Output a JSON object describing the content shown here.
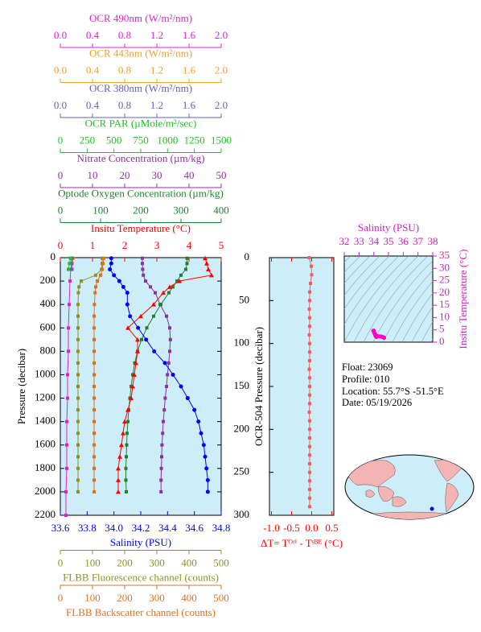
{
  "chart_data": [
    {
      "type": "profile",
      "ylabel": "Pressure (decibar)",
      "ylim": [
        0,
        2200
      ],
      "yticks": [
        0,
        200,
        400,
        600,
        800,
        1000,
        1200,
        1400,
        1600,
        1800,
        2000,
        2200
      ],
      "background": "#cdeef8",
      "pressure": [
        5,
        50,
        100,
        150,
        200,
        250,
        300,
        400,
        500,
        600,
        700,
        800,
        900,
        1000,
        1100,
        1200,
        1300,
        1400,
        1500,
        1600,
        1700,
        1800,
        1900,
        2000
      ],
      "series": [
        {
          "name": "OCR 490nm (W/m²/nm)",
          "color": "#e020d0",
          "position": "top",
          "marker": "square",
          "xlim": [
            0,
            2
          ],
          "xticks": [
            {
              "value": 0,
              "label": "0.0"
            },
            0.4,
            0.8,
            1.2,
            1.6,
            {
              "value": 2,
              "label": "2.0"
            }
          ],
          "pressure": [
            5,
            50,
            100,
            200,
            400,
            600,
            800,
            1000,
            1200,
            1400,
            1600,
            1800,
            2000,
            2200
          ],
          "values": [
            0.14,
            0.14,
            0.13,
            0.12,
            0.11,
            0.1,
            0.1,
            0.09,
            0.09,
            0.08,
            0.08,
            0.08,
            0.07,
            0.07
          ]
        },
        {
          "name": "OCR 443nm (W/m²/nm)",
          "color": "#f0a020",
          "position": "top",
          "marker": "square",
          "xlim": [
            0,
            2
          ],
          "xticks": [
            {
              "value": 0,
              "label": "0.0"
            },
            0.4,
            0.8,
            1.2,
            1.6,
            {
              "value": 2,
              "label": "2.0"
            }
          ],
          "pressure": [
            5,
            50,
            100
          ],
          "values": [
            0.16,
            0.15,
            0.15
          ]
        },
        {
          "name": "OCR 380nm (W/m²/nm)",
          "color": "#6060c0",
          "position": "top",
          "marker": "square",
          "xlim": [
            0,
            2
          ],
          "xticks": [
            {
              "value": 0,
              "label": "0.0"
            },
            0.4,
            0.8,
            1.2,
            1.6,
            {
              "value": 2,
              "label": "2.0"
            }
          ],
          "pressure": [
            5,
            50,
            100
          ],
          "values": [
            0.15,
            0.14,
            0.14
          ]
        },
        {
          "name": "OCR PAR (µMole/m²/sec)",
          "color": "#20c020",
          "position": "top",
          "marker": "square",
          "xlim": [
            0,
            1500
          ],
          "xticks": [
            0,
            250,
            500,
            750,
            1000,
            1250,
            1500
          ],
          "pressure": [
            5,
            50,
            100
          ],
          "values": [
            95,
            85,
            75
          ]
        },
        {
          "name": "Nitrate Concentration (µm/kg)",
          "color": "#9030a0",
          "position": "top",
          "marker": "square",
          "xlim": [
            0,
            50
          ],
          "xticks": [
            0,
            10,
            20,
            30,
            40,
            50
          ],
          "values": [
            25.5,
            25.5,
            25.6,
            25.8,
            26.5,
            28,
            29.5,
            31,
            33,
            34,
            34.2,
            34,
            33.7,
            33.3,
            33,
            32.6,
            32.3,
            32,
            31.8,
            31.6,
            31.5,
            31.4,
            31.3,
            31.3
          ]
        },
        {
          "name": "Optode Oxygen Concentration (µm/kg)",
          "color": "#208030",
          "position": "top",
          "marker": "square",
          "xlim": [
            0,
            400
          ],
          "xticks": [
            0,
            100,
            200,
            300,
            400
          ],
          "values": [
            315,
            315,
            312,
            300,
            290,
            280,
            270,
            250,
            232,
            215,
            202,
            192,
            185,
            180,
            176,
            173,
            170,
            168,
            166,
            165,
            164,
            163,
            163,
            164
          ]
        },
        {
          "name": "Insitu Temperature (°C)",
          "color": "#ff0000",
          "position": "top",
          "marker": "triangle",
          "xlim": [
            0,
            5
          ],
          "xticks": [
            0,
            1,
            2,
            3,
            4,
            5
          ],
          "values": [
            4.5,
            4.55,
            4.6,
            4.7,
            3.7,
            3.4,
            3.2,
            2.9,
            2.5,
            2.1,
            2.4,
            2.4,
            2.35,
            2.3,
            2.25,
            2.2,
            2.1,
            2.0,
            1.95,
            1.9,
            1.85,
            1.8,
            1.8,
            1.8
          ]
        },
        {
          "name": "Salinity (PSU)",
          "color": "#0000ff",
          "position": "bottom",
          "marker": "circle",
          "xlim": [
            33.6,
            34.8
          ],
          "xticks": [
            33.6,
            33.8,
            {
              "value": 34,
              "label": "34.0"
            },
            34.2,
            34.4,
            34.6,
            34.8
          ],
          "values": [
            33.98,
            33.98,
            33.97,
            34.0,
            34.04,
            34.07,
            34.1,
            34.1,
            34.12,
            34.18,
            34.24,
            34.3,
            34.38,
            34.44,
            34.5,
            34.55,
            34.6,
            34.63,
            34.65,
            34.67,
            34.68,
            34.69,
            34.7,
            34.7
          ]
        },
        {
          "name": "FLBB Fluorescence channel (counts)",
          "color": "#909020",
          "position": "bottom",
          "marker": "square",
          "xlim": [
            0,
            500
          ],
          "xticks": [
            0,
            100,
            200,
            300,
            400,
            500
          ],
          "values": [
            130,
            130,
            128,
            110,
            65,
            58,
            56,
            55,
            55,
            55,
            55,
            55,
            55,
            55,
            55,
            55,
            55,
            55,
            55,
            55,
            55,
            55,
            55,
            55
          ]
        },
        {
          "name": "FLBB Backscatter channel (counts)",
          "color": "#e07020",
          "position": "bottom",
          "marker": "square",
          "xlim": [
            0,
            500
          ],
          "xticks": [
            0,
            100,
            200,
            300,
            400,
            500
          ],
          "values": [
            135,
            133,
            130,
            125,
            115,
            110,
            108,
            106,
            105,
            105,
            105,
            105,
            105,
            105,
            105,
            105,
            105,
            105,
            105,
            105,
            105,
            105,
            105,
            105
          ]
        }
      ]
    },
    {
      "type": "difference",
      "ylabel": "OCR-504 Pressure (decibar)",
      "xlabel": "ΔT= Tᴼʳⁱ - Tˢᴮᴱ (°C)",
      "ylim": [
        0,
        300
      ],
      "yticks": [
        0,
        50,
        100,
        150,
        200,
        250,
        300
      ],
      "xlim": [
        -1.05,
        0.55
      ],
      "xticks": [
        {
          "value": -1,
          "label": "-1.0"
        },
        -0.5,
        {
          "value": 0,
          "label": "0.0"
        },
        0.5
      ],
      "color": "#f06060",
      "axis_color": "#ff0000",
      "background": "#cdeef8",
      "pressure": [
        0,
        10,
        20,
        30,
        40,
        50,
        60,
        70,
        80,
        90,
        100,
        110,
        120,
        130,
        140,
        150,
        160,
        170,
        180,
        190,
        200,
        210,
        220,
        230,
        240,
        250,
        260,
        270,
        280,
        290
      ],
      "values": [
        -0.06,
        -0.01,
        0.0,
        -0.03,
        -0.05,
        -0.05,
        -0.06,
        -0.05,
        -0.05,
        -0.06,
        -0.05,
        -0.05,
        -0.05,
        -0.06,
        -0.05,
        -0.05,
        -0.05,
        -0.05,
        -0.06,
        -0.05,
        -0.05,
        -0.05,
        -0.05,
        -0.05,
        -0.05,
        -0.05,
        -0.05,
        -0.05,
        -0.05,
        -0.05
      ]
    },
    {
      "type": "ts",
      "xlabel": "Salinity (PSU)",
      "ylabel": "Insitu Temperature (°C)",
      "xlim": [
        32,
        38
      ],
      "xticks": [
        32,
        33,
        34,
        35,
        36,
        37,
        38
      ],
      "ylim": [
        0,
        35
      ],
      "yticks": [
        0,
        5,
        10,
        15,
        20,
        25,
        30,
        35
      ],
      "color": "#ff00cc",
      "axis_color": "#d020c0",
      "background": "#cdeef8"
    }
  ],
  "info": {
    "lines": [
      "Float:  23069",
      "Profile:  010",
      "Location:  55.7°S  -51.5°E",
      "Date:  05/19/2026"
    ]
  }
}
